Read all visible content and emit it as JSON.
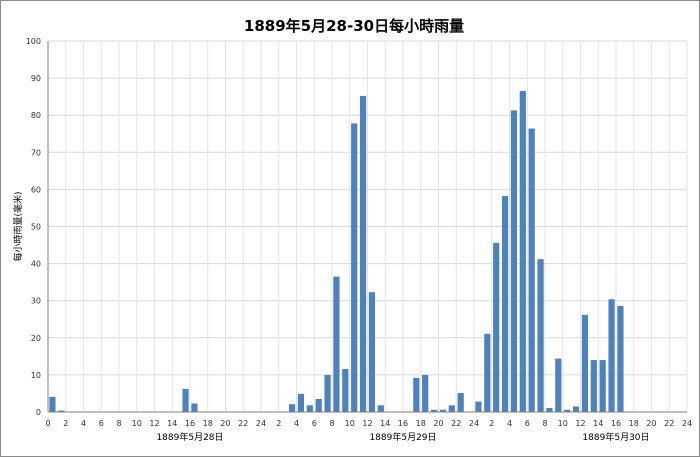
{
  "chart_data": {
    "type": "bar",
    "title": "1889年5月28-30日每小時雨量",
    "ylabel": "每小時雨量(毫米)",
    "xlabel": "",
    "ylim": [
      0,
      100
    ],
    "yticks": [
      "0",
      "10",
      "20",
      "30",
      "40",
      "50",
      "60",
      "70",
      "80",
      "90",
      "100"
    ],
    "grid": true,
    "legend": "none",
    "bar_color": "#4f81bd",
    "hour_ticks": [
      "0",
      "2",
      "4",
      "6",
      "8",
      "10",
      "12",
      "14",
      "16",
      "18",
      "20",
      "22",
      "24",
      "2",
      "4",
      "6",
      "8",
      "10",
      "12",
      "14",
      "16",
      "18",
      "20",
      "22",
      "24",
      "2",
      "4",
      "6",
      "8",
      "10",
      "12",
      "14",
      "16",
      "18",
      "20",
      "22",
      "24"
    ],
    "day_labels": [
      "1889年5月28日",
      "1889年5月29日",
      "1889年5月30日"
    ],
    "series": [
      {
        "values": [
          4.1,
          0.4,
          0,
          0,
          0,
          0,
          0,
          0,
          0,
          0,
          0,
          0,
          0,
          0,
          0,
          6.2,
          2.3,
          0,
          0,
          0,
          0,
          0,
          0,
          0,
          0,
          0,
          0,
          2.1,
          4.9,
          1.8,
          3.5,
          10,
          36.5,
          11.6,
          77.8,
          85.2,
          32.3,
          1.8,
          0,
          0,
          0,
          9.2,
          10,
          0.6,
          0.6,
          1.8,
          5.1,
          0,
          2.8,
          21.1,
          45.6,
          58.2,
          81.3,
          86.5,
          76.4,
          41.2,
          1.1,
          14.4,
          0.6,
          1.5,
          26.2,
          14,
          14,
          30.4,
          28.6,
          0,
          0,
          0,
          0,
          0,
          0,
          0
        ]
      }
    ]
  }
}
